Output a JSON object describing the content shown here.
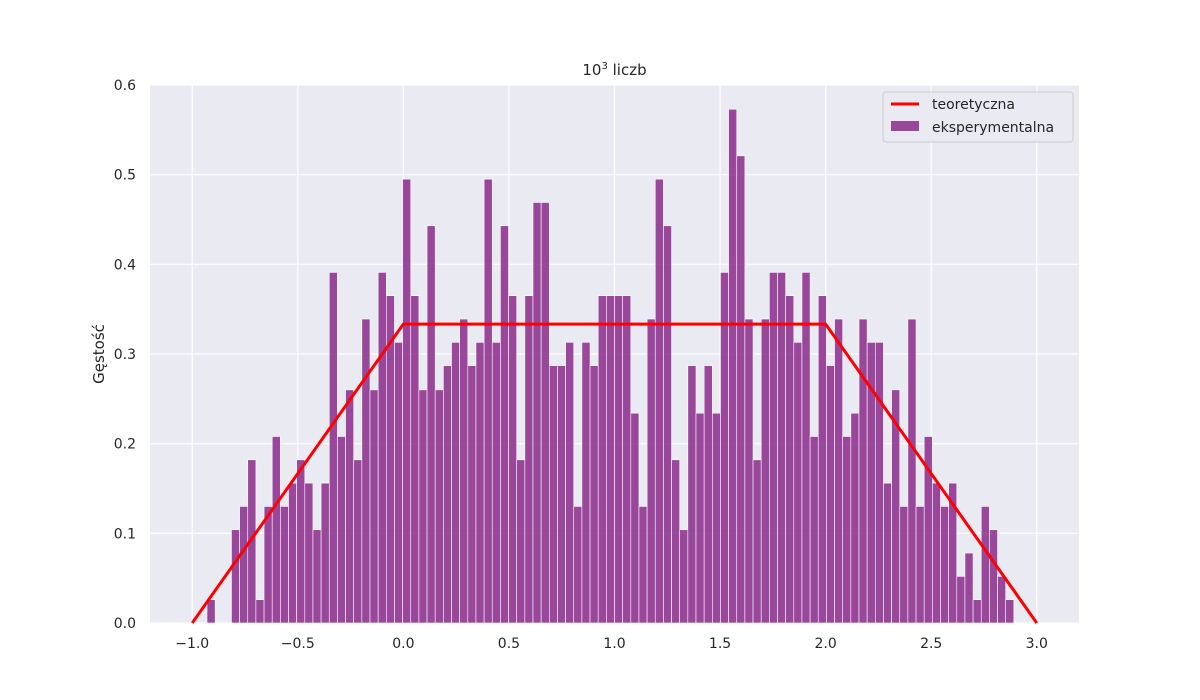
{
  "chart_data": {
    "type": "bar",
    "title_base": "10",
    "title_sup": "3",
    "title_rest": " liczb",
    "xlabel": "",
    "ylabel": "Gęstość",
    "xlim": [
      -1.2,
      3.2
    ],
    "ylim": [
      0,
      0.6
    ],
    "x_ticks": [
      -1.0,
      -0.5,
      0.0,
      0.5,
      1.0,
      1.5,
      2.0,
      2.5,
      3.0
    ],
    "x_tick_labels": [
      "−1.0",
      "−0.5",
      "0.0",
      "0.5",
      "1.0",
      "1.5",
      "2.0",
      "2.5",
      "3.0"
    ],
    "y_ticks": [
      0.0,
      0.1,
      0.2,
      0.3,
      0.4,
      0.5,
      0.6
    ],
    "y_tick_labels": [
      "0.0",
      "0.1",
      "0.2",
      "0.3",
      "0.4",
      "0.5",
      "0.6"
    ],
    "grid": true,
    "legend_position": "top-right",
    "histogram": {
      "name": "eksperymentalna",
      "color": "#8b2a8c",
      "bin_start": -0.93,
      "bin_width": 0.0386,
      "values": [
        0.026,
        0,
        0,
        0.104,
        0.13,
        0.182,
        0.026,
        0.13,
        0.208,
        0.13,
        0.156,
        0.182,
        0.156,
        0.104,
        0.156,
        0.391,
        0.208,
        0.26,
        0.182,
        0.339,
        0.26,
        0.391,
        0.365,
        0.313,
        0.495,
        0.365,
        0.26,
        0.443,
        0.26,
        0.287,
        0.313,
        0.339,
        0.287,
        0.313,
        0.495,
        0.313,
        0.443,
        0.365,
        0.182,
        0.365,
        0.469,
        0.469,
        0.287,
        0.287,
        0.313,
        0.13,
        0.313,
        0.287,
        0.365,
        0.365,
        0.365,
        0.365,
        0.234,
        0.13,
        0.339,
        0.495,
        0.443,
        0.182,
        0.104,
        0.287,
        0.234,
        0.287,
        0.234,
        0.391,
        0.573,
        0.521,
        0.339,
        0.182,
        0.339,
        0.391,
        0.391,
        0.365,
        0.313,
        0.391,
        0.208,
        0.365,
        0.287,
        0.339,
        0.208,
        0.234,
        0.339,
        0.313,
        0.313,
        0.156,
        0.26,
        0.13,
        0.339,
        0.13,
        0.208,
        0.156,
        0.13,
        0.156,
        0.052,
        0.078,
        0.026,
        0.13,
        0.104,
        0.052,
        0.026
      ]
    },
    "line": {
      "name": "teoretyczna",
      "color": "#ff0000",
      "x": [
        -1.0,
        0.0,
        2.0,
        3.0
      ],
      "y": [
        0.0,
        0.3333,
        0.3333,
        0.0
      ]
    },
    "legend": {
      "line_label": "teoretyczna",
      "bar_label": "eksperymentalna"
    },
    "colors": {
      "plot_bg": "#eaeaf2",
      "grid": "#ffffff"
    }
  }
}
